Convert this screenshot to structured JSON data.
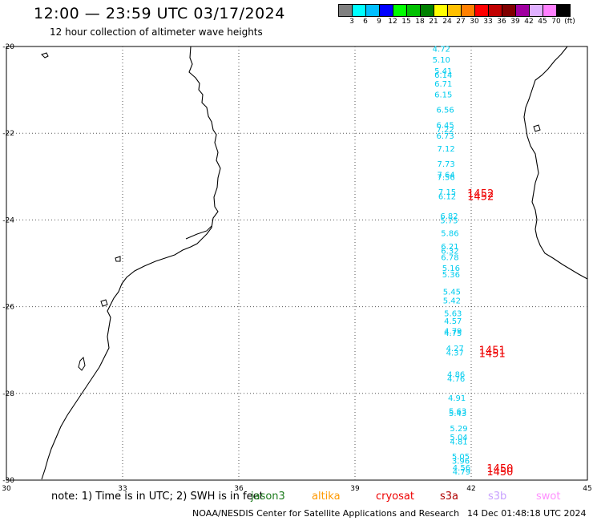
{
  "header": {
    "title": "12:00 — 23:59 UTC 03/17/2024",
    "subtitle": "12 hour collection of altimeter wave heights"
  },
  "colorbar": {
    "colors": [
      "#808080",
      "#00ffff",
      "#00bfff",
      "#0000ff",
      "#00ff00",
      "#00c000",
      "#008000",
      "#ffff00",
      "#ffc000",
      "#ff8000",
      "#ff0000",
      "#c00000",
      "#800000",
      "#a000a0",
      "#e0b0ff",
      "#ff80ff",
      "#000000"
    ],
    "labels": [
      "3",
      "6",
      "9",
      "12",
      "15",
      "18",
      "21",
      "24",
      "27",
      "30",
      "33",
      "36",
      "39",
      "42",
      "45",
      "70",
      "(ft)"
    ]
  },
  "map": {
    "lon_range": [
      30,
      45
    ],
    "lat_range": [
      -30,
      -20
    ],
    "x_ticks": [
      "30",
      "33",
      "36",
      "39",
      "42",
      "45"
    ],
    "y_ticks": [
      "-20",
      "-22",
      "-24",
      "-26",
      "-28",
      "-30"
    ],
    "grid": "dotted",
    "track_color": "#00ccee",
    "time_color": "#ee0000",
    "wave_heights": [
      {
        "lon": 41.0,
        "lat": -20.05,
        "label": "4.72"
      },
      {
        "lon": 41.0,
        "lat": -20.3,
        "label": "5.10"
      },
      {
        "lon": 41.05,
        "lat": -20.55,
        "label": "5.41"
      },
      {
        "lon": 41.05,
        "lat": -20.65,
        "label": "6.14"
      },
      {
        "lon": 41.05,
        "lat": -20.85,
        "label": "6.71"
      },
      {
        "lon": 41.05,
        "lat": -21.1,
        "label": "6.15"
      },
      {
        "lon": 41.1,
        "lat": -21.45,
        "label": "6.56"
      },
      {
        "lon": 41.1,
        "lat": -21.8,
        "label": "6.45"
      },
      {
        "lon": 41.1,
        "lat": -21.9,
        "label": "7.22"
      },
      {
        "lon": 41.1,
        "lat": -22.05,
        "label": "6.73"
      },
      {
        "lon": 41.12,
        "lat": -22.35,
        "label": "7.12"
      },
      {
        "lon": 41.12,
        "lat": -22.7,
        "label": "7.73"
      },
      {
        "lon": 41.12,
        "lat": -22.95,
        "label": "7.64"
      },
      {
        "lon": 41.12,
        "lat": -23.0,
        "label": "7.56"
      },
      {
        "lon": 41.15,
        "lat": -23.35,
        "label": "7.15"
      },
      {
        "lon": 41.15,
        "lat": -23.45,
        "label": "6.12"
      },
      {
        "lon": 41.2,
        "lat": -23.9,
        "label": "6.82"
      },
      {
        "lon": 41.2,
        "lat": -24.0,
        "label": "5.75"
      },
      {
        "lon": 41.22,
        "lat": -24.3,
        "label": "5.86"
      },
      {
        "lon": 41.22,
        "lat": -24.6,
        "label": "6.21"
      },
      {
        "lon": 41.22,
        "lat": -24.7,
        "label": "6.32"
      },
      {
        "lon": 41.22,
        "lat": -24.85,
        "label": "6.78"
      },
      {
        "lon": 41.25,
        "lat": -25.1,
        "label": "5.16"
      },
      {
        "lon": 41.25,
        "lat": -25.25,
        "label": "5.36"
      },
      {
        "lon": 41.27,
        "lat": -25.65,
        "label": "5.45"
      },
      {
        "lon": 41.27,
        "lat": -25.85,
        "label": "5.42"
      },
      {
        "lon": 41.3,
        "lat": -26.15,
        "label": "5.63"
      },
      {
        "lon": 41.3,
        "lat": -26.32,
        "label": "4.57"
      },
      {
        "lon": 41.3,
        "lat": -26.55,
        "label": "4.79"
      },
      {
        "lon": 41.3,
        "lat": -26.6,
        "label": "4.75"
      },
      {
        "lon": 41.35,
        "lat": -26.95,
        "label": "4.27"
      },
      {
        "lon": 41.35,
        "lat": -27.05,
        "label": "4.37"
      },
      {
        "lon": 41.38,
        "lat": -27.55,
        "label": "4.86"
      },
      {
        "lon": 41.38,
        "lat": -27.65,
        "label": "4.76"
      },
      {
        "lon": 41.4,
        "lat": -28.1,
        "label": "4.91"
      },
      {
        "lon": 41.42,
        "lat": -28.4,
        "label": "5.63"
      },
      {
        "lon": 41.42,
        "lat": -28.45,
        "label": "5.43"
      },
      {
        "lon": 41.45,
        "lat": -28.8,
        "label": "5.29"
      },
      {
        "lon": 41.45,
        "lat": -29.0,
        "label": "5.04"
      },
      {
        "lon": 41.45,
        "lat": -29.1,
        "label": "4.81"
      },
      {
        "lon": 41.5,
        "lat": -29.45,
        "label": "5.05"
      },
      {
        "lon": 41.5,
        "lat": -29.55,
        "label": "3.96"
      },
      {
        "lon": 41.52,
        "lat": -29.7,
        "label": "4.56"
      },
      {
        "lon": 41.52,
        "lat": -29.8,
        "label": "4.79"
      }
    ],
    "time_labels": [
      {
        "lon": 41.9,
        "lat": -23.38,
        "label": "1452"
      },
      {
        "lon": 41.9,
        "lat": -23.45,
        "label": "1452"
      },
      {
        "lon": 42.2,
        "lat": -27.0,
        "label": "1451"
      },
      {
        "lon": 42.2,
        "lat": -27.07,
        "label": "1451"
      },
      {
        "lon": 42.4,
        "lat": -29.72,
        "label": "1450"
      },
      {
        "lon": 42.4,
        "lat": -29.8,
        "label": "1450"
      }
    ]
  },
  "footer": {
    "note": "note:  1) Time is in UTC; 2) SWH is in feet",
    "satellites": [
      {
        "label": "jason3",
        "color": "#1a7a1a"
      },
      {
        "label": "altika",
        "color": "#ff9900"
      },
      {
        "label": "cryosat",
        "color": "#ee0000"
      },
      {
        "label": "s3a",
        "color": "#b00000"
      },
      {
        "label": "s3b",
        "color": "#c8a0ff"
      },
      {
        "label": "swot",
        "color": "#ff90ff"
      }
    ],
    "credit": "NOAA/NESDIS Center for Satellite Applications and Research",
    "timestamp": "14 Dec 01:48:18 UTC 2024"
  }
}
